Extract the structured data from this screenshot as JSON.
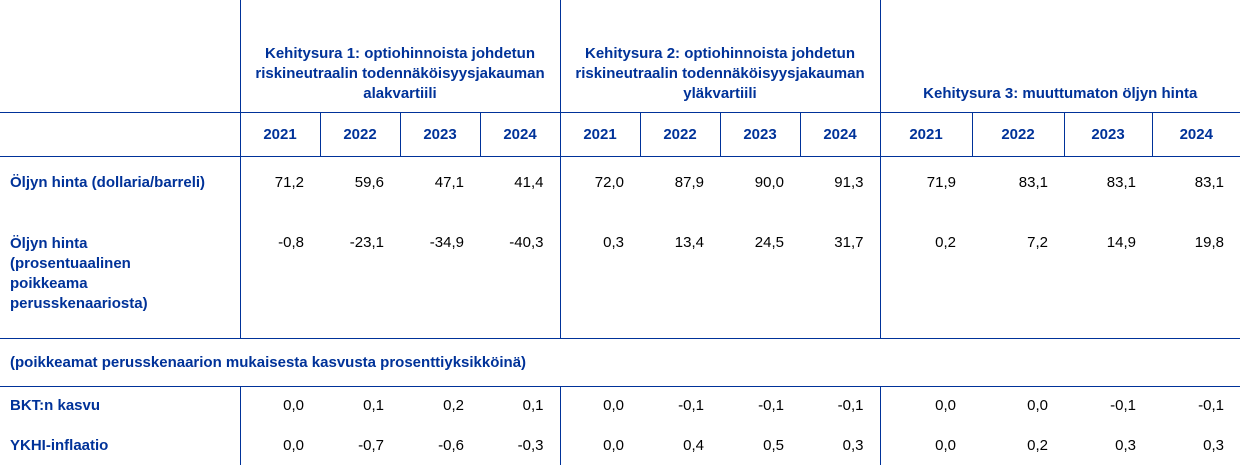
{
  "groups": [
    {
      "title": "Kehitysura 1: optiohinnoista johdetun riskineutraalin todennäköisyysjakauman alakvartiili"
    },
    {
      "title": "Kehitysura 2: optiohinnoista johdetun riskineutraalin todennäköisyysjakauman yläkvartiili"
    },
    {
      "title": "Kehitysura 3: muuttumaton öljyn hinta"
    }
  ],
  "years": [
    "2021",
    "2022",
    "2023",
    "2024"
  ],
  "rows": [
    {
      "label": "Öljyn hinta (dollaria/barreli)",
      "values": [
        "71,2",
        "59,6",
        "47,1",
        "41,4",
        "72,0",
        "87,9",
        "90,0",
        "91,3",
        "71,9",
        "83,1",
        "83,1",
        "83,1"
      ]
    },
    {
      "label": "Öljyn hinta (prosentuaalinen poikkeama perusskenaariosta)",
      "values": [
        "-0,8",
        "-23,1",
        "-34,9",
        "-40,3",
        "0,3",
        "13,4",
        "24,5",
        "31,7",
        "0,2",
        "7,2",
        "14,9",
        "19,8"
      ]
    }
  ],
  "section_note": "(poikkeamat perusskenaarion mukaisesta kasvusta prosenttiyksikköinä)",
  "rows2": [
    {
      "label": "BKT:n kasvu",
      "values": [
        "0,0",
        "0,1",
        "0,2",
        "0,1",
        "0,0",
        "-0,1",
        "-0,1",
        "-0,1",
        "0,0",
        "0,0",
        "-0,1",
        "-0,1"
      ]
    },
    {
      "label": "YKHI-inflaatio",
      "values": [
        "0,0",
        "-0,7",
        "-0,6",
        "-0,3",
        "0,0",
        "0,4",
        "0,5",
        "0,3",
        "0,0",
        "0,2",
        "0,3",
        "0,3"
      ]
    }
  ]
}
